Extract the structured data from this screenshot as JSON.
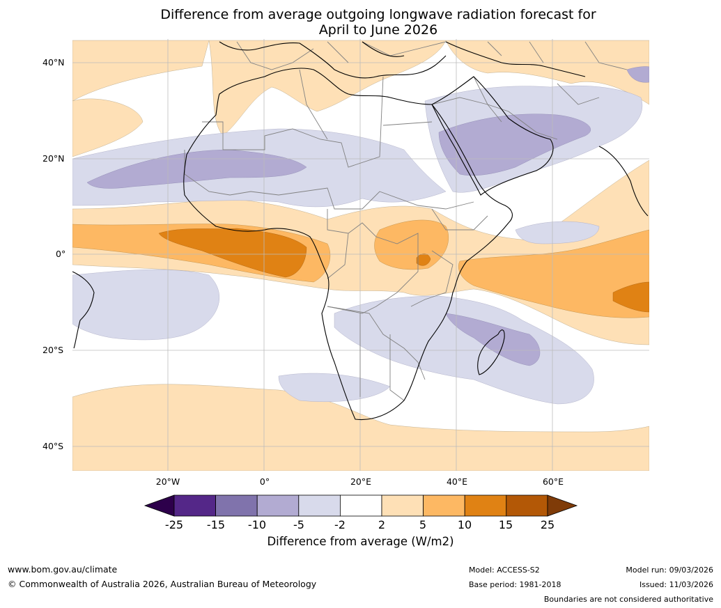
{
  "title_line1": "Difference from average outgoing longwave radiation forecast for",
  "title_line2": "April to June 2026",
  "lat_labels": [
    "40°N",
    "20°N",
    "0°",
    "20°S",
    "40°S"
  ],
  "lon_labels": [
    "20°W",
    "0°",
    "20°E",
    "40°E",
    "60°E"
  ],
  "colorbar": {
    "label": "Difference from average (W/m2)",
    "ticks": [
      "-25",
      "-15",
      "-10",
      "-5",
      "-2",
      "2",
      "5",
      "10",
      "15",
      "25"
    ],
    "colors": {
      "below_min": "#2d004b",
      "b1": "#542788",
      "b2": "#8073ac",
      "b3": "#b2abd2",
      "b4": "#d8daeb",
      "b5": "#ffffff",
      "b6": "#fee0b6",
      "b7": "#fdb863",
      "b8": "#e08214",
      "b9": "#b35806",
      "above_max": "#7f3b08"
    }
  },
  "footer": {
    "url": "www.bom.gov.au/climate",
    "copyright": "© Commonwealth of Australia 2026, Australian Bureau of Meteorology",
    "model": "Model: ACCESS-S2",
    "base_period": "Base period: 1981-2018",
    "model_run": "Model run: 09/03/2026",
    "issued": "Issued: 11/03/2026",
    "disclaimer": "Boundaries are not considered authoritative"
  }
}
